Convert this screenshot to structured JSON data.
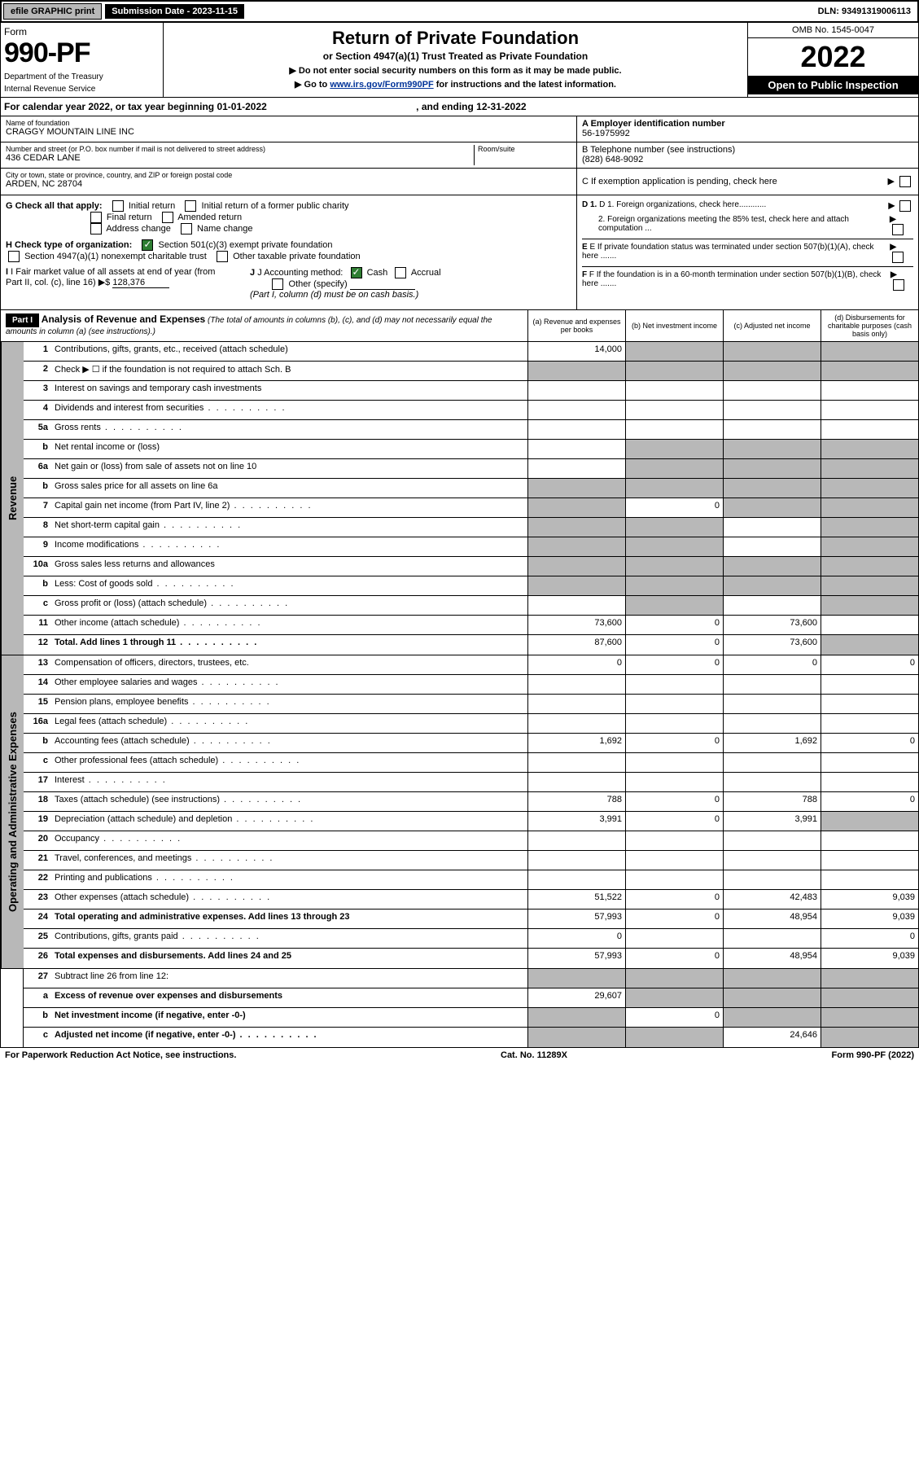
{
  "top": {
    "efile": "efile GRAPHIC print",
    "submission": "Submission Date - 2023-11-15",
    "dln": "DLN: 93491319006113"
  },
  "header": {
    "form": "Form",
    "formNo": "990-PF",
    "dept": "Department of the Treasury",
    "irs": "Internal Revenue Service",
    "title": "Return of Private Foundation",
    "subtitle": "or Section 4947(a)(1) Trust Treated as Private Foundation",
    "line1": "▶ Do not enter social security numbers on this form as it may be made public.",
    "line2_pre": "▶ Go to ",
    "line2_link": "www.irs.gov/Form990PF",
    "line2_post": " for instructions and the latest information.",
    "omb": "OMB No. 1545-0047",
    "year": "2022",
    "open": "Open to Public Inspection"
  },
  "calYear": {
    "text": "For calendar year 2022, or tax year beginning 01-01-2022",
    "ending": ", and ending 12-31-2022"
  },
  "info": {
    "nameLbl": "Name of foundation",
    "name": "CRAGGY MOUNTAIN LINE INC",
    "addrLbl": "Number and street (or P.O. box number if mail is not delivered to street address)",
    "addr": "436 CEDAR LANE",
    "roomLbl": "Room/suite",
    "cityLbl": "City or town, state or province, country, and ZIP or foreign postal code",
    "city": "ARDEN, NC  28704",
    "einLbl": "A Employer identification number",
    "ein": "56-1975992",
    "phoneLbl": "B Telephone number (see instructions)",
    "phone": "(828) 648-9092",
    "cLbl": "C If exemption application is pending, check here"
  },
  "checks": {
    "gLbl": "G Check all that apply:",
    "g_initial": "Initial return",
    "g_initial_former": "Initial return of a former public charity",
    "g_final": "Final return",
    "g_amended": "Amended return",
    "g_address": "Address change",
    "g_name": "Name change",
    "hLbl": "H Check type of organization:",
    "h_501c3": "Section 501(c)(3) exempt private foundation",
    "h_4947": "Section 4947(a)(1) nonexempt charitable trust",
    "h_other": "Other taxable private foundation",
    "iLbl": "I Fair market value of all assets at end of year (from Part II, col. (c), line 16) ▶$",
    "iVal": "128,376",
    "jLbl": "J Accounting method:",
    "j_cash": "Cash",
    "j_accrual": "Accrual",
    "j_other": "Other (specify)",
    "j_note": "(Part I, column (d) must be on cash basis.)",
    "d1": "D 1. Foreign organizations, check here............",
    "d2": "2. Foreign organizations meeting the 85% test, check here and attach computation ...",
    "eLbl": "E If private foundation status was terminated under section 507(b)(1)(A), check here .......",
    "fLbl": "F If the foundation is in a 60-month termination under section 507(b)(1)(B), check here ......."
  },
  "part1": {
    "label": "Part I",
    "title": "Analysis of Revenue and Expenses",
    "note": "(The total of amounts in columns (b), (c), and (d) may not necessarily equal the amounts in column (a) (see instructions).)",
    "colA": "(a) Revenue and expenses per books",
    "colB": "(b) Net investment income",
    "colC": "(c) Adjusted net income",
    "colD": "(d) Disbursements for charitable purposes (cash basis only)"
  },
  "sides": {
    "revenue": "Revenue",
    "expenses": "Operating and Administrative Expenses"
  },
  "rows": {
    "r1": {
      "num": "1",
      "desc": "Contributions, gifts, grants, etc., received (attach schedule)",
      "a": "14,000"
    },
    "r2": {
      "num": "2",
      "desc": "Check ▶ ☐ if the foundation is not required to attach Sch. B"
    },
    "r3": {
      "num": "3",
      "desc": "Interest on savings and temporary cash investments"
    },
    "r4": {
      "num": "4",
      "desc": "Dividends and interest from securities"
    },
    "r5a": {
      "num": "5a",
      "desc": "Gross rents"
    },
    "r5b": {
      "num": "b",
      "desc": "Net rental income or (loss)"
    },
    "r6a": {
      "num": "6a",
      "desc": "Net gain or (loss) from sale of assets not on line 10"
    },
    "r6b": {
      "num": "b",
      "desc": "Gross sales price for all assets on line 6a"
    },
    "r7": {
      "num": "7",
      "desc": "Capital gain net income (from Part IV, line 2)",
      "b": "0"
    },
    "r8": {
      "num": "8",
      "desc": "Net short-term capital gain"
    },
    "r9": {
      "num": "9",
      "desc": "Income modifications"
    },
    "r10a": {
      "num": "10a",
      "desc": "Gross sales less returns and allowances"
    },
    "r10b": {
      "num": "b",
      "desc": "Less: Cost of goods sold"
    },
    "r10c": {
      "num": "c",
      "desc": "Gross profit or (loss) (attach schedule)"
    },
    "r11": {
      "num": "11",
      "desc": "Other income (attach schedule)",
      "a": "73,600",
      "b": "0",
      "c": "73,600"
    },
    "r12": {
      "num": "12",
      "desc": "Total. Add lines 1 through 11",
      "a": "87,600",
      "b": "0",
      "c": "73,600"
    },
    "r13": {
      "num": "13",
      "desc": "Compensation of officers, directors, trustees, etc.",
      "a": "0",
      "b": "0",
      "c": "0",
      "d": "0"
    },
    "r14": {
      "num": "14",
      "desc": "Other employee salaries and wages"
    },
    "r15": {
      "num": "15",
      "desc": "Pension plans, employee benefits"
    },
    "r16a": {
      "num": "16a",
      "desc": "Legal fees (attach schedule)"
    },
    "r16b": {
      "num": "b",
      "desc": "Accounting fees (attach schedule)",
      "a": "1,692",
      "b": "0",
      "c": "1,692",
      "d": "0"
    },
    "r16c": {
      "num": "c",
      "desc": "Other professional fees (attach schedule)"
    },
    "r17": {
      "num": "17",
      "desc": "Interest"
    },
    "r18": {
      "num": "18",
      "desc": "Taxes (attach schedule) (see instructions)",
      "a": "788",
      "b": "0",
      "c": "788",
      "d": "0"
    },
    "r19": {
      "num": "19",
      "desc": "Depreciation (attach schedule) and depletion",
      "a": "3,991",
      "b": "0",
      "c": "3,991"
    },
    "r20": {
      "num": "20",
      "desc": "Occupancy"
    },
    "r21": {
      "num": "21",
      "desc": "Travel, conferences, and meetings"
    },
    "r22": {
      "num": "22",
      "desc": "Printing and publications"
    },
    "r23": {
      "num": "23",
      "desc": "Other expenses (attach schedule)",
      "a": "51,522",
      "b": "0",
      "c": "42,483",
      "d": "9,039"
    },
    "r24": {
      "num": "24",
      "desc": "Total operating and administrative expenses. Add lines 13 through 23",
      "a": "57,993",
      "b": "0",
      "c": "48,954",
      "d": "9,039"
    },
    "r25": {
      "num": "25",
      "desc": "Contributions, gifts, grants paid",
      "a": "0",
      "d": "0"
    },
    "r26": {
      "num": "26",
      "desc": "Total expenses and disbursements. Add lines 24 and 25",
      "a": "57,993",
      "b": "0",
      "c": "48,954",
      "d": "9,039"
    },
    "r27": {
      "num": "27",
      "desc": "Subtract line 26 from line 12:"
    },
    "r27a": {
      "num": "a",
      "desc": "Excess of revenue over expenses and disbursements",
      "a": "29,607"
    },
    "r27b": {
      "num": "b",
      "desc": "Net investment income (if negative, enter -0-)",
      "b": "0"
    },
    "r27c": {
      "num": "c",
      "desc": "Adjusted net income (if negative, enter -0-)",
      "c": "24,646"
    }
  },
  "footer": {
    "left": "For Paperwork Reduction Act Notice, see instructions.",
    "mid": "Cat. No. 11289X",
    "right": "Form 990-PF (2022)"
  }
}
